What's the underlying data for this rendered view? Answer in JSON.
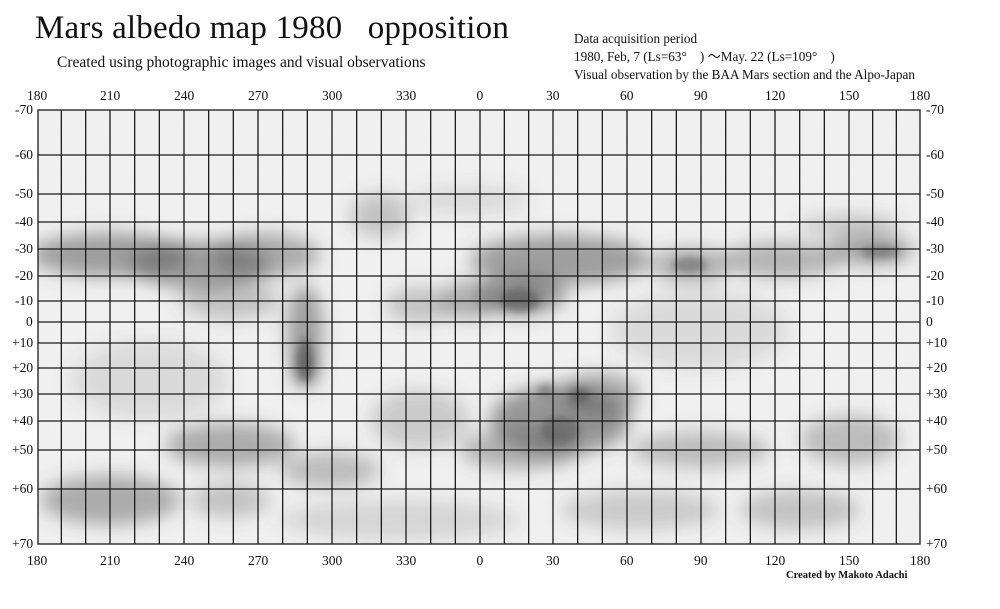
{
  "title": "Mars albedo map 1980   opposition",
  "subtitle": "Created using photographic images and visual observations",
  "acquisition": {
    "heading": "Data acquisition period",
    "period": "1980, Feb, 7 (Ls=63°　) 〜May. 22 (Ls=109°　)",
    "sources": "Visual observation by the BAA Mars section and the Alpo-Japan"
  },
  "credit": "Created by Makoto Adachi",
  "longitude_labels": [
    "180",
    "210",
    "240",
    "270",
    "300",
    "330",
    "0",
    "30",
    "60",
    "90",
    "120",
    "150",
    "180"
  ],
  "latitude_labels": [
    "-70",
    "-60",
    "-50",
    "-40",
    "-30",
    "-20",
    "-10",
    "0",
    "+10",
    "+20",
    "+30",
    "+40",
    "+50",
    "+60",
    "+70"
  ],
  "colors": {
    "grid": "#1a1a1a",
    "paper": "#f4f4f4",
    "shading": "#555555"
  }
}
